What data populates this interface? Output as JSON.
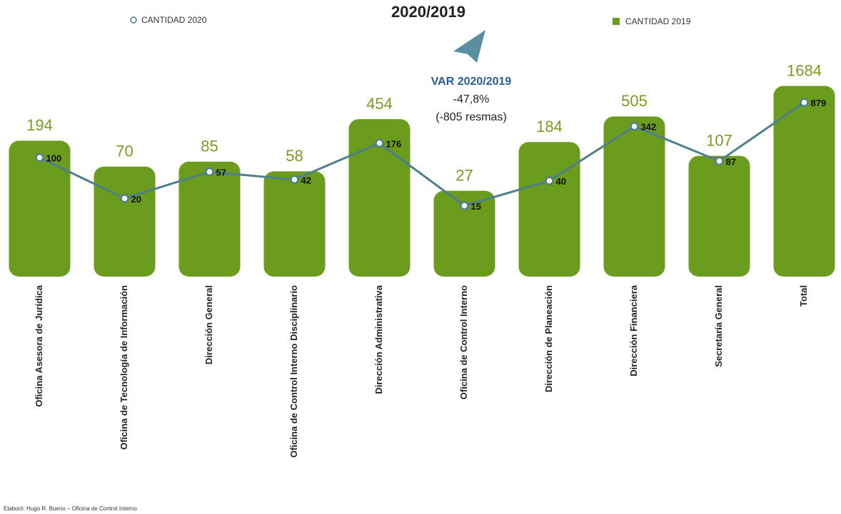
{
  "chart_data": {
    "type": "bar_line",
    "title": "2020/2019",
    "categories": [
      "Oficina Asesora de Jurídica",
      "Oficina de Tecnología de Información",
      "Dirección General",
      "Oficina de Control Interno Disciplinario",
      "Dirección Administrativa",
      "Oficina de Control Interno",
      "Dirección de Planeación",
      "Dirección Financiera",
      "Secretaría General",
      "Total"
    ],
    "series": [
      {
        "name": "CANTIDAD 2019",
        "color": "#6c9c1e",
        "values": [
          194,
          70,
          85,
          58,
          454,
          27,
          184,
          505,
          107,
          1684
        ]
      },
      {
        "name": "CANTIDAD 2020",
        "color": "#4f7f8c",
        "values": [
          100,
          20,
          57,
          42,
          176,
          15,
          40,
          342,
          87,
          879
        ]
      }
    ],
    "log_scale": true,
    "annotations": [
      "VAR 2020/2019",
      "-47,8%",
      "(-805 resmas)"
    ],
    "source": "Elaboró: Hugo R. Bueno – Oficina de Control Interno"
  }
}
